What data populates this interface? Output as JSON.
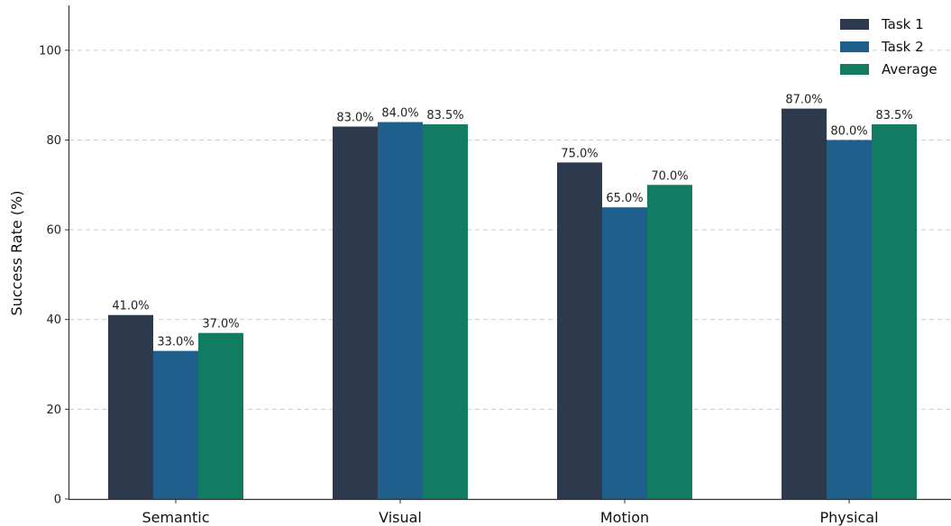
{
  "chart_data": {
    "type": "bar",
    "categories": [
      "Semantic",
      "Visual",
      "Motion",
      "Physical"
    ],
    "series": [
      {
        "name": "Task 1",
        "values": [
          41.0,
          83.0,
          75.0,
          87.0
        ],
        "color": "#2d3a4e"
      },
      {
        "name": "Task 2",
        "values": [
          33.0,
          84.0,
          65.0,
          80.0
        ],
        "color": "#1f5f8b"
      },
      {
        "name": "Average",
        "values": [
          37.0,
          83.5,
          70.0,
          83.5
        ],
        "color": "#127c63"
      }
    ],
    "value_labels": [
      [
        "41.0%",
        "83.0%",
        "75.0%",
        "87.0%"
      ],
      [
        "33.0%",
        "84.0%",
        "65.0%",
        "80.0%"
      ],
      [
        "37.0%",
        "83.5%",
        "70.0%",
        "83.5%"
      ]
    ],
    "ylabel": "Success Rate (%)",
    "xlabel": "",
    "ylim": [
      0,
      110
    ],
    "yticks": [
      0,
      20,
      40,
      60,
      80,
      100
    ],
    "ytick_labels": [
      "0",
      "20",
      "40",
      "60",
      "80",
      "100"
    ],
    "grid": "y-dashed",
    "legend_position": "top-right"
  }
}
